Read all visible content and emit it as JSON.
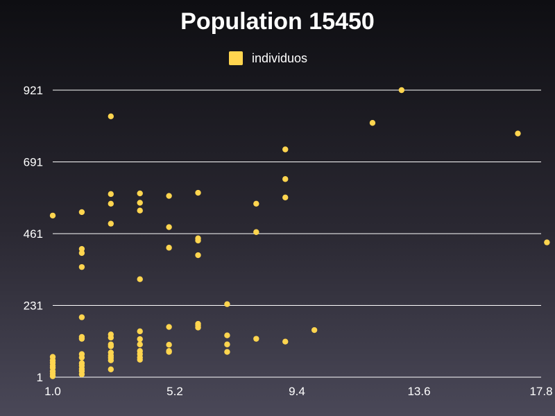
{
  "chart_data": {
    "type": "scatter",
    "title": "Population 15450",
    "xlabel": "",
    "ylabel": "",
    "xlim": [
      1.0,
      17.8
    ],
    "ylim": [
      1,
      921
    ],
    "x_ticks": [
      "1.0",
      "5.2",
      "9.4",
      "13.6",
      "17.8"
    ],
    "x_tick_values": [
      1.0,
      5.2,
      9.4,
      13.6,
      17.8
    ],
    "y_ticks": [
      "1",
      "231",
      "461",
      "691",
      "921"
    ],
    "y_tick_values": [
      1,
      231,
      461,
      691,
      921
    ],
    "grid": "horizontal",
    "legend_position": "top-center",
    "series": [
      {
        "name": "individuos",
        "color": "#FFD54F",
        "points": [
          [
            1.0,
            519
          ],
          [
            1.0,
            66
          ],
          [
            1.0,
            55
          ],
          [
            1.0,
            47
          ],
          [
            1.0,
            38
          ],
          [
            1.0,
            31
          ],
          [
            1.0,
            20
          ],
          [
            1.0,
            12
          ],
          [
            1.0,
            4
          ],
          [
            2.0,
            530
          ],
          [
            2.0,
            412
          ],
          [
            2.0,
            399
          ],
          [
            2.0,
            354
          ],
          [
            2.0,
            193
          ],
          [
            2.0,
            130
          ],
          [
            2.0,
            124
          ],
          [
            2.0,
            75
          ],
          [
            2.0,
            64
          ],
          [
            2.0,
            46
          ],
          [
            2.0,
            38
          ],
          [
            2.0,
            28
          ],
          [
            2.0,
            20
          ],
          [
            2.0,
            10
          ],
          [
            3.0,
            837
          ],
          [
            3.0,
            588
          ],
          [
            3.0,
            557
          ],
          [
            3.0,
            493
          ],
          [
            3.0,
            138
          ],
          [
            3.0,
            128
          ],
          [
            3.0,
            106
          ],
          [
            3.0,
            100
          ],
          [
            3.0,
            80
          ],
          [
            3.0,
            70
          ],
          [
            3.0,
            63
          ],
          [
            3.0,
            55
          ],
          [
            3.0,
            26
          ],
          [
            4.0,
            590
          ],
          [
            4.0,
            560
          ],
          [
            4.0,
            535
          ],
          [
            4.0,
            315
          ],
          [
            4.0,
            148
          ],
          [
            4.0,
            123
          ],
          [
            4.0,
            106
          ],
          [
            4.0,
            85
          ],
          [
            4.0,
            75
          ],
          [
            4.0,
            64
          ],
          [
            4.0,
            57
          ],
          [
            5.0,
            582
          ],
          [
            5.0,
            482
          ],
          [
            5.0,
            416
          ],
          [
            5.0,
            162
          ],
          [
            5.0,
            105
          ],
          [
            5.0,
            85
          ],
          [
            5.0,
            82
          ],
          [
            6.0,
            592
          ],
          [
            6.0,
            446
          ],
          [
            6.0,
            439
          ],
          [
            6.0,
            392
          ],
          [
            6.0,
            172
          ],
          [
            6.0,
            167
          ],
          [
            6.0,
            160
          ],
          [
            7.0,
            235
          ],
          [
            7.0,
            135
          ],
          [
            7.0,
            106
          ],
          [
            7.0,
            82
          ],
          [
            8.0,
            557
          ],
          [
            8.0,
            466
          ],
          [
            8.0,
            124
          ],
          [
            9.0,
            731
          ],
          [
            9.0,
            636
          ],
          [
            9.0,
            577
          ],
          [
            9.0,
            115
          ],
          [
            10.0,
            152
          ],
          [
            12.0,
            816
          ],
          [
            13.0,
            921
          ],
          [
            17.0,
            782
          ],
          [
            18.0,
            433
          ]
        ]
      }
    ]
  }
}
